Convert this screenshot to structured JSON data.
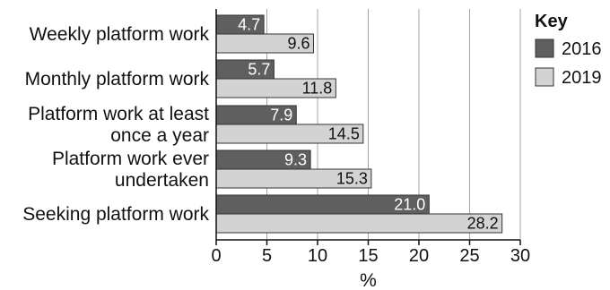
{
  "chart_data": {
    "type": "bar",
    "orientation": "horizontal",
    "categories": [
      "Weekly platform work",
      "Monthly platform work",
      "Platform work at least once a year",
      "Platform work ever undertaken",
      "Seeking platform work"
    ],
    "category_lines": [
      [
        "Weekly platform work"
      ],
      [
        "Monthly platform work"
      ],
      [
        "Platform work at least",
        "once a year"
      ],
      [
        "Platform work ever",
        "undertaken"
      ],
      [
        "Seeking platform work"
      ]
    ],
    "series": [
      {
        "name": "2016",
        "values": [
          4.7,
          5.7,
          7.9,
          9.3,
          21.0
        ],
        "labels": [
          "4.7",
          "5.7",
          "7.9",
          "9.3",
          "21.0"
        ],
        "color": "#5f5f5f",
        "label_color": "#ffffff"
      },
      {
        "name": "2019",
        "values": [
          9.6,
          11.8,
          14.5,
          15.3,
          28.2
        ],
        "labels": [
          "9.6",
          "11.8",
          "14.5",
          "15.3",
          "28.2"
        ],
        "color": "#d3d3d3",
        "label_color": "#111111"
      }
    ],
    "xlabel": "%",
    "xlim": [
      0,
      30
    ],
    "xticks": [
      0,
      5,
      10,
      15,
      20,
      25,
      30
    ],
    "grid": "vertical",
    "legend": {
      "title": "Key",
      "position": "top-right"
    }
  }
}
